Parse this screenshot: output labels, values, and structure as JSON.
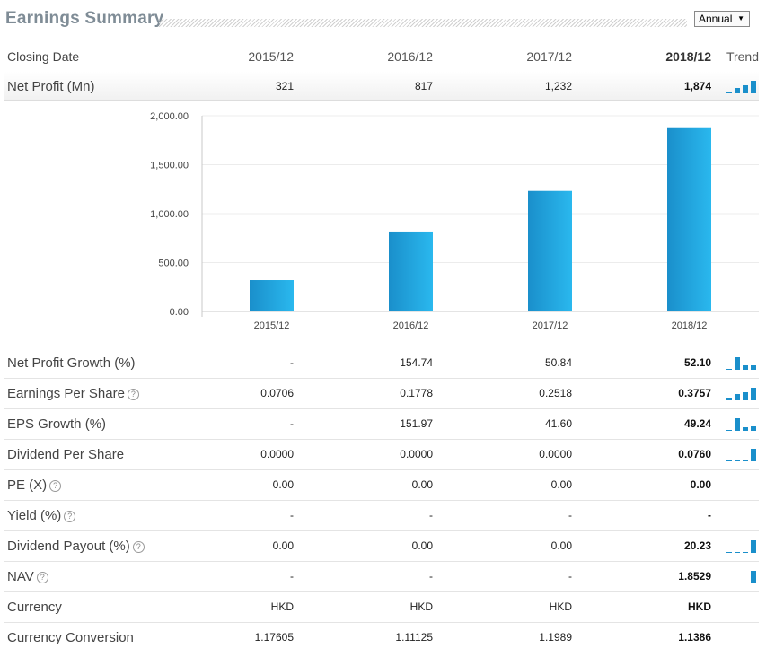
{
  "header": {
    "title": "Earnings Summary",
    "period_select": "Annual"
  },
  "columns": {
    "label": "Closing Date",
    "periods": [
      "2015/12",
      "2016/12",
      "2017/12",
      "2018/12"
    ],
    "trend": "Trend"
  },
  "rows": [
    {
      "label": "Net Profit (Mn)",
      "help": false,
      "values": [
        "321",
        "817",
        "1,232",
        "1,874"
      ]
    },
    {
      "label": "Net Profit Growth (%)",
      "help": false,
      "values": [
        "-",
        "154.74",
        "50.84",
        "52.10"
      ]
    },
    {
      "label": "Earnings Per Share",
      "help": true,
      "values": [
        "0.0706",
        "0.1778",
        "0.2518",
        "0.3757"
      ]
    },
    {
      "label": "EPS Growth (%)",
      "help": false,
      "values": [
        "-",
        "151.97",
        "41.60",
        "49.24"
      ]
    },
    {
      "label": "Dividend Per Share",
      "help": false,
      "values": [
        "0.0000",
        "0.0000",
        "0.0000",
        "0.0760"
      ]
    },
    {
      "label": "PE (X)",
      "help": true,
      "values": [
        "0.00",
        "0.00",
        "0.00",
        "0.00"
      ]
    },
    {
      "label": "Yield (%)",
      "help": true,
      "values": [
        "-",
        "-",
        "-",
        "-"
      ]
    },
    {
      "label": "Dividend Payout (%)",
      "help": true,
      "values": [
        "0.00",
        "0.00",
        "0.00",
        "20.23"
      ]
    },
    {
      "label": "NAV",
      "help": true,
      "values": [
        "-",
        "-",
        "-",
        "1.8529"
      ]
    },
    {
      "label": "Currency",
      "help": false,
      "values": [
        "HKD",
        "HKD",
        "HKD",
        "HKD"
      ]
    },
    {
      "label": "Currency Conversion",
      "help": false,
      "values": [
        "1.17605",
        "1.11125",
        "1.1989",
        "1.1386"
      ]
    }
  ],
  "colors": {
    "bar": "#1a9ad6",
    "bar_light": "#2ab4ea",
    "spark": "#1a8fcb",
    "title": "#7f8c96"
  },
  "chart_data": {
    "type": "bar",
    "categories": [
      "2015/12",
      "2016/12",
      "2017/12",
      "2018/12"
    ],
    "values": [
      321,
      817,
      1232,
      1874
    ],
    "ylim": [
      0,
      2000
    ],
    "yticks": [
      "0.00",
      "500.00",
      "1,000.00",
      "1,500.00",
      "2,000.00"
    ],
    "ytick_values": [
      0,
      500,
      1000,
      1500,
      2000
    ],
    "grid": true,
    "title": "",
    "xlabel": "",
    "ylabel": ""
  }
}
